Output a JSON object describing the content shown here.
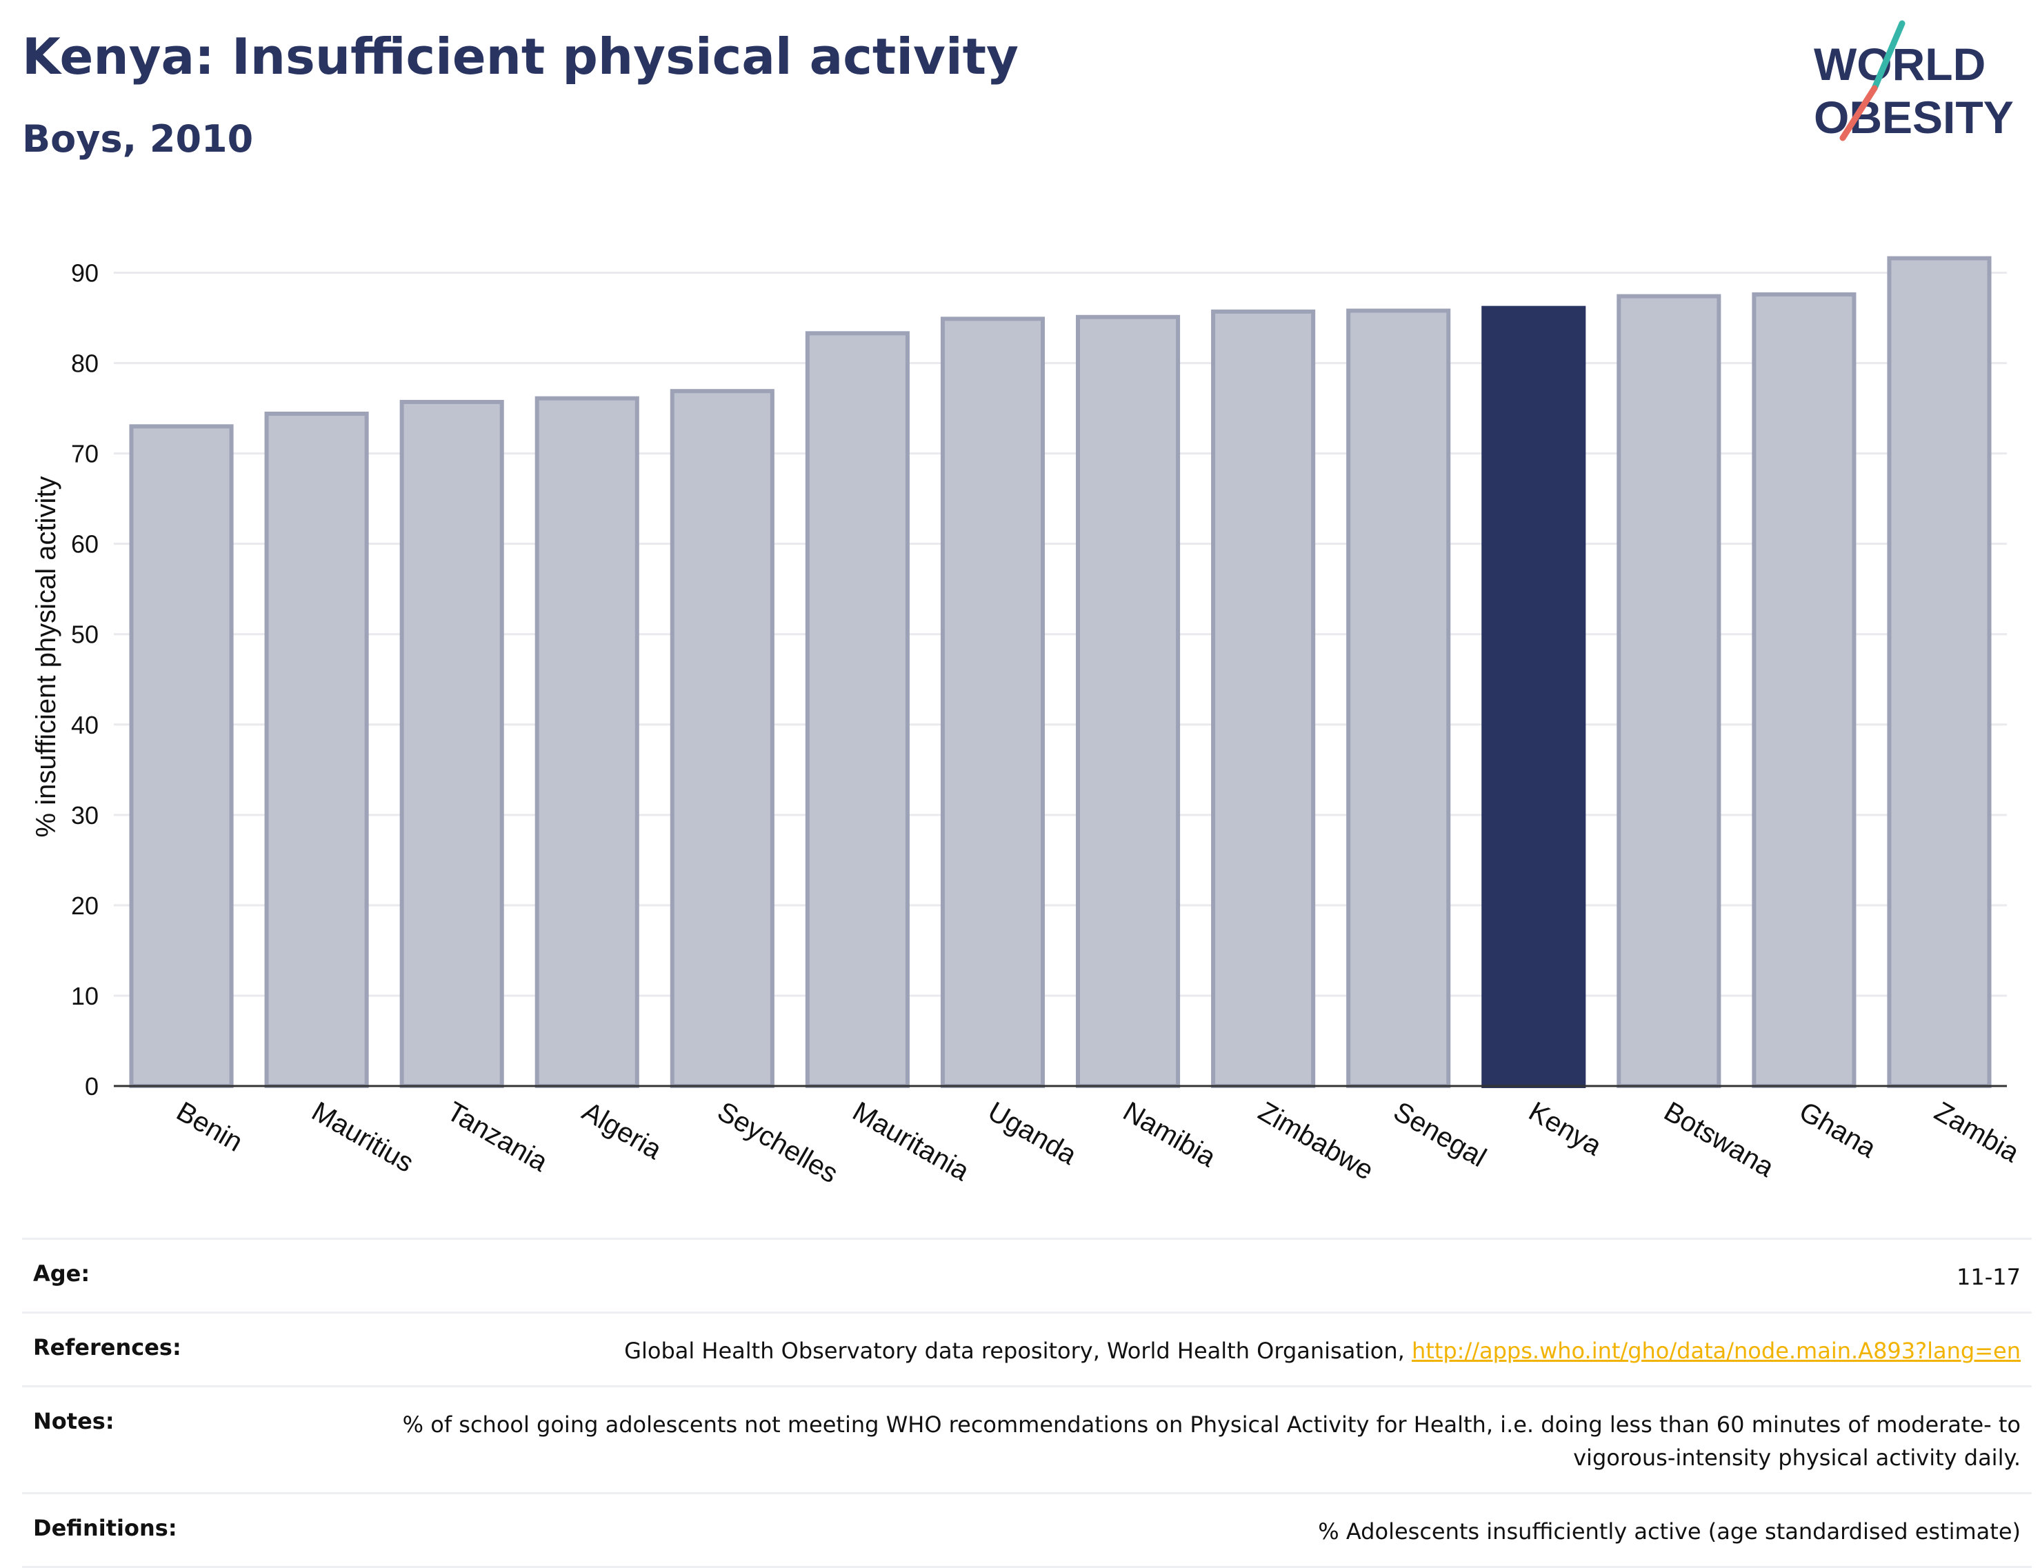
{
  "header": {
    "title": "Kenya: Insufficient physical activity",
    "subtitle": "Boys, 2010"
  },
  "logo": {
    "line1": "WORLD",
    "line2": "OBESITY",
    "accent_teal": "#36b5a9",
    "accent_coral": "#e86a5e"
  },
  "chart_data": {
    "type": "bar",
    "categories": [
      "Benin",
      "Mauritius",
      "Tanzania",
      "Algeria",
      "Seychelles",
      "Mauritania",
      "Uganda",
      "Namibia",
      "Zimbabwe",
      "Senegal",
      "Kenya",
      "Botswana",
      "Ghana",
      "Zambia"
    ],
    "values": [
      73.0,
      74.4,
      75.7,
      76.1,
      76.9,
      83.3,
      84.9,
      85.1,
      85.7,
      85.8,
      86.1,
      87.4,
      87.6,
      91.6
    ],
    "highlight": "Kenya",
    "ylabel": "% insufficient physical activity",
    "ylim": [
      0,
      95
    ],
    "yticks": [
      0,
      10,
      20,
      30,
      40,
      50,
      60,
      70,
      80,
      90
    ],
    "grid": true,
    "colors": {
      "bar": "#bfc2cf",
      "bar_edge": "#9da2b7",
      "highlight": "#2a3461",
      "grid": "#e9e9ee",
      "axis": "#333333"
    }
  },
  "metadata": {
    "rows": [
      {
        "label": "Age:",
        "value": "11-17"
      },
      {
        "label": "References:",
        "value": "Global Health Observatory data repository, World Health Organisation, ",
        "link": "http://apps.who.int/gho/data/node.main.A893?lang=en"
      },
      {
        "label": "Notes:",
        "value": "% of school going adolescents not meeting WHO recommendations on Physical Activity for Health, i.e. doing less than 60 minutes of moderate- to vigorous-intensity physical activity daily."
      },
      {
        "label": "Definitions:",
        "value": "% Adolescents insufficiently active (age standardised estimate)"
      }
    ]
  }
}
